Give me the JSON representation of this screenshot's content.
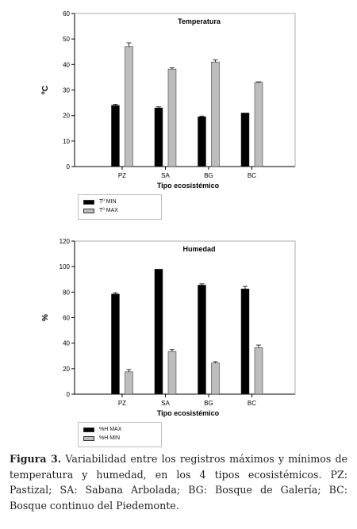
{
  "chart_data": [
    {
      "type": "bar",
      "title": "Temperatura",
      "xlabel": "Tipo ecosistémico",
      "ylabel": "ºC",
      "categories": [
        "PZ",
        "SA",
        "BG",
        "BC"
      ],
      "ylim": [
        0,
        60
      ],
      "yticks": [
        "0",
        "10",
        "20",
        "30",
        "40",
        "50",
        "60"
      ],
      "error_bars": true,
      "grid": false,
      "legend_position": "bottom-left",
      "series": [
        {
          "name": "Tº MIN",
          "color": "#000000",
          "values": [
            24,
            23,
            19.5,
            21
          ],
          "errors": [
            0.4,
            0.4,
            0.3,
            0
          ]
        },
        {
          "name": "Tº MAX",
          "color": "#bdbdbd",
          "values": [
            47,
            38.2,
            41,
            33
          ],
          "errors": [
            1.5,
            0.5,
            0.8,
            0.2
          ]
        }
      ]
    },
    {
      "type": "bar",
      "title": "Humedad",
      "xlabel": "Tipo ecosistémico",
      "ylabel": "%",
      "categories": [
        "PZ",
        "SA",
        "BG",
        "BC"
      ],
      "ylim": [
        0,
        120
      ],
      "yticks": [
        "0",
        "20",
        "40",
        "60",
        "80",
        "100",
        "120"
      ],
      "error_bars": true,
      "grid": false,
      "legend_position": "bottom-left",
      "series": [
        {
          "name": "%H MAX",
          "color": "#000000",
          "values": [
            78.5,
            98,
            85.5,
            82.5
          ],
          "errors": [
            1,
            0,
            1,
            2
          ]
        },
        {
          "name": "%H MIN",
          "color": "#bdbdbd",
          "values": [
            17.5,
            33.5,
            24.5,
            36.5
          ],
          "errors": [
            1.8,
            1.5,
            1,
            2
          ]
        }
      ]
    }
  ],
  "caption": {
    "label": "Figura 3.",
    "line1": "Variabilidad entre los registros máximos y mínimos",
    "line2": "de temperatura y humedad, en los 4 tipos ecosistémicos. PZ:",
    "line3": "Pastizal; SA: Sabana Arbolada; BG: Bosque de Galería; BC:",
    "line4": "Bosque continuo del Piedemonte."
  }
}
